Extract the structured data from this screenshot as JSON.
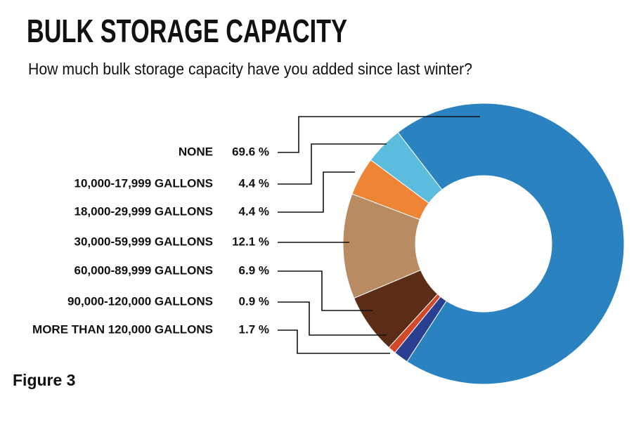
{
  "chart_data": {
    "type": "pie",
    "title": "BULK STORAGE CAPACITY",
    "subtitle": "How much bulk storage capacity have you added since last winter?",
    "caption": "Figure 3",
    "categories": [
      "NONE",
      "10,000-17,999 GALLONS",
      "18,000-29,999 GALLONS",
      "30,000-59,999 GALLONS",
      "60,000-89,999 GALLONS",
      "90,000-120,000 GALLONS",
      "MORE THAN 120,000 GALLONS"
    ],
    "values": [
      69.6,
      4.4,
      4.4,
      12.1,
      6.9,
      0.9,
      1.7
    ],
    "value_labels": [
      "69.6 %",
      "4.4 %",
      "4.4 %",
      "12.1 %",
      "6.9 %",
      "0.9 %",
      "1.7 %"
    ],
    "colors": [
      "#2a82c0",
      "#5bbcde",
      "#ee8435",
      "#b88b62",
      "#5b2c16",
      "#d2492a",
      "#2a3f8f"
    ]
  }
}
